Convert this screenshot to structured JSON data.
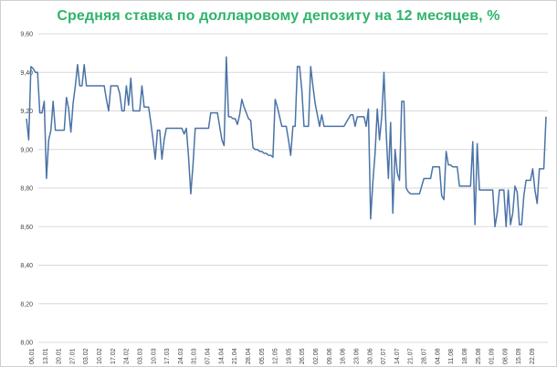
{
  "chart_data": {
    "type": "line",
    "title": "Средняя ставка по долларовому депозиту на 12 месяцев, %",
    "xlabel": "",
    "ylabel": "",
    "ylim": [
      8.0,
      9.6
    ],
    "yticks": [
      "8,00",
      "8,20",
      "8,40",
      "8,60",
      "8,80",
      "9,00",
      "9,20",
      "9,40",
      "9,60"
    ],
    "xticks": [
      "06.01",
      "13.01",
      "20.01",
      "27.01",
      "03.02",
      "10.02",
      "17.02",
      "24.02",
      "03.03",
      "10.03",
      "17.03",
      "24.03",
      "31.03",
      "07.04",
      "14.04",
      "21.04",
      "28.04",
      "05.05",
      "12.05",
      "19.05",
      "26.05",
      "02.06",
      "09.06",
      "16.06",
      "23.06",
      "30.06",
      "07.07",
      "14.07",
      "21.07",
      "28.07",
      "04.08",
      "11.08",
      "18.08",
      "25.08",
      "01.09",
      "08.09",
      "15.09",
      "22.09"
    ],
    "grid": true,
    "line_color": "#4a73a6",
    "series": [
      {
        "name": "",
        "values": [
          9.16,
          9.05,
          9.43,
          9.42,
          9.4,
          9.4,
          9.19,
          9.19,
          9.25,
          8.85,
          9.05,
          9.1,
          9.25,
          9.1,
          9.1,
          9.1,
          9.1,
          9.1,
          9.27,
          9.21,
          9.09,
          9.24,
          9.33,
          9.44,
          9.33,
          9.33,
          9.44,
          9.33,
          9.33,
          9.33,
          9.33,
          9.33,
          9.33,
          9.33,
          9.33,
          9.33,
          9.26,
          9.2,
          9.33,
          9.33,
          9.33,
          9.33,
          9.29,
          9.2,
          9.2,
          9.33,
          9.23,
          9.37,
          9.2,
          9.2,
          9.2,
          9.2,
          9.33,
          9.22,
          9.22,
          9.22,
          9.14,
          9.05,
          8.95,
          9.1,
          9.1,
          8.95,
          9.05,
          9.11,
          9.11,
          9.11,
          9.11,
          9.11,
          9.11,
          9.11,
          9.11,
          9.08,
          9.11,
          8.96,
          8.77,
          8.92,
          9.11,
          9.11,
          9.11,
          9.11,
          9.11,
          9.11,
          9.11,
          9.19,
          9.19,
          9.19,
          9.19,
          9.12,
          9.05,
          9.02,
          9.48,
          9.17,
          9.17,
          9.16,
          9.16,
          9.13,
          9.18,
          9.26,
          9.22,
          9.19,
          9.16,
          9.15,
          9.01,
          9.0,
          9.0,
          8.99,
          8.99,
          8.98,
          8.98,
          8.97,
          8.97,
          8.96,
          9.26,
          9.22,
          9.17,
          9.12,
          9.12,
          9.12,
          9.05,
          8.97,
          9.12,
          9.12,
          9.43,
          9.43,
          9.31,
          9.12,
          9.12,
          9.12,
          9.43,
          9.33,
          9.24,
          9.18,
          9.12,
          9.18,
          9.12,
          9.12,
          9.12,
          9.12,
          9.12,
          9.12,
          9.12,
          9.12,
          9.12,
          9.12,
          9.14,
          9.16,
          9.18,
          9.18,
          9.12,
          9.17,
          9.17,
          9.17,
          9.17,
          9.12,
          9.21,
          8.64,
          8.83,
          8.98,
          9.21,
          9.05,
          9.17,
          9.4,
          9.09,
          8.85,
          9.14,
          8.67,
          9.0,
          8.88,
          8.84,
          9.25,
          9.25,
          8.8,
          8.78,
          8.77,
          8.77,
          8.77,
          8.77,
          8.77,
          8.81,
          8.85,
          8.85,
          8.85,
          8.85,
          8.91,
          8.91,
          8.91,
          8.91,
          8.76,
          8.74,
          8.99,
          8.92,
          8.92,
          8.91,
          8.91,
          8.91,
          8.81,
          8.81,
          8.81,
          8.81,
          8.81,
          8.81,
          9.04,
          8.61,
          9.03,
          8.79,
          8.79,
          8.79,
          8.79,
          8.79,
          8.79,
          8.79,
          8.6,
          8.67,
          8.79,
          8.79,
          8.79,
          8.6,
          8.79,
          8.61,
          8.67,
          8.81,
          8.78,
          8.61,
          8.61,
          8.76,
          8.84,
          8.84,
          8.84,
          8.9,
          8.79,
          8.72,
          8.9,
          8.9,
          8.9,
          9.17
        ]
      }
    ]
  }
}
